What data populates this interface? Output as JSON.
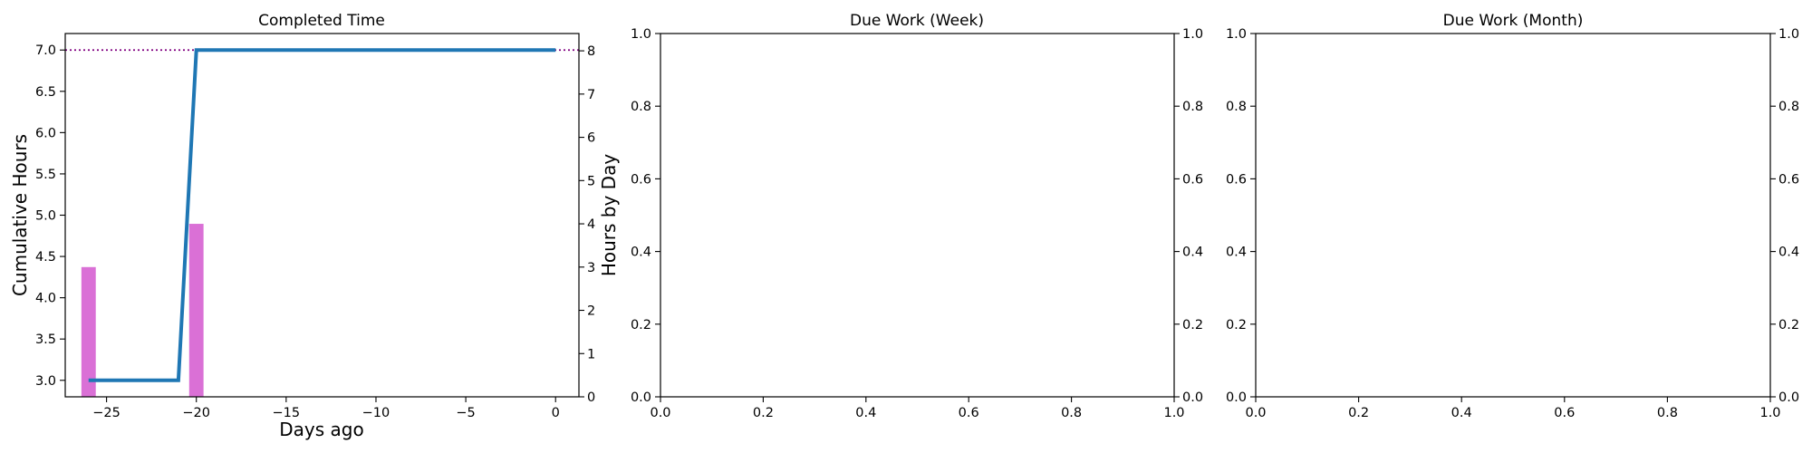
{
  "colors": {
    "line": "#1f77b4",
    "bars": "#da70d6",
    "target": "#800080",
    "axes": "#000000",
    "background": "#ffffff"
  },
  "chart_data": [
    {
      "type": "line",
      "title": "Completed Time",
      "xlabel": "Days ago",
      "ylabel": "Cumulative Hours",
      "ylabel_right": "Hours by Day",
      "xlim": [
        -27.3,
        1.3
      ],
      "ylim": [
        2.8,
        7.2
      ],
      "ylim_right": [
        0,
        8.4
      ],
      "xticks": [
        -25,
        -20,
        -15,
        -10,
        -5,
        0
      ],
      "xtick_labels": [
        "−25",
        "−20",
        "−15",
        "−10",
        "−5",
        "0"
      ],
      "yticks": [
        3.0,
        3.5,
        4.0,
        4.5,
        5.0,
        5.5,
        6.0,
        6.5,
        7.0
      ],
      "ytick_labels": [
        "3.0",
        "3.5",
        "4.0",
        "4.5",
        "5.0",
        "5.5",
        "6.0",
        "6.5",
        "7.0"
      ],
      "yticks_right": [
        0,
        1,
        2,
        3,
        4,
        5,
        6,
        7,
        8
      ],
      "ytick_labels_right": [
        "0",
        "1",
        "2",
        "3",
        "4",
        "5",
        "6",
        "7",
        "8"
      ],
      "series": [
        {
          "type": "line",
          "axis": "left",
          "x": [
            -26,
            -21,
            -20,
            0
          ],
          "y": [
            3.0,
            3.0,
            7.0,
            7.0
          ]
        },
        {
          "type": "bar",
          "axis": "right",
          "x": [
            -26,
            -20
          ],
          "y": [
            3,
            4
          ]
        }
      ],
      "reference_line": {
        "axis": "left",
        "y": 7.0,
        "style": "dotted"
      },
      "grid": false
    },
    {
      "type": "line",
      "title": "Due Work (Week)",
      "xlim": [
        0,
        1
      ],
      "ylim": [
        0,
        1
      ],
      "ylim_right": [
        0,
        1
      ],
      "xticks": [
        0,
        0.2,
        0.4,
        0.6,
        0.8,
        1.0
      ],
      "xtick_labels": [
        "0.0",
        "0.2",
        "0.4",
        "0.6",
        "0.8",
        "1.0"
      ],
      "yticks": [
        0,
        0.2,
        0.4,
        0.6,
        0.8,
        1.0
      ],
      "ytick_labels": [
        "0.0",
        "0.2",
        "0.4",
        "0.6",
        "0.8",
        "1.0"
      ],
      "yticks_right": [
        0,
        0.2,
        0.4,
        0.6,
        0.8,
        1.0
      ],
      "ytick_labels_right": [
        "0.0",
        "0.2",
        "0.4",
        "0.6",
        "0.8",
        "1.0"
      ],
      "series": [],
      "grid": false
    },
    {
      "type": "line",
      "title": "Due Work (Month)",
      "xlim": [
        0,
        1
      ],
      "ylim": [
        0,
        1
      ],
      "ylim_right": [
        0,
        1
      ],
      "xticks": [
        0,
        0.2,
        0.4,
        0.6,
        0.8,
        1.0
      ],
      "xtick_labels": [
        "0.0",
        "0.2",
        "0.4",
        "0.6",
        "0.8",
        "1.0"
      ],
      "yticks": [
        0,
        0.2,
        0.4,
        0.6,
        0.8,
        1.0
      ],
      "ytick_labels": [
        "0.0",
        "0.2",
        "0.4",
        "0.6",
        "0.8",
        "1.0"
      ],
      "yticks_right": [
        0,
        0.2,
        0.4,
        0.6,
        0.8,
        1.0
      ],
      "ytick_labels_right": [
        "0.0",
        "0.2",
        "0.4",
        "0.6",
        "0.8",
        "1.0"
      ],
      "series": [],
      "grid": false
    }
  ]
}
